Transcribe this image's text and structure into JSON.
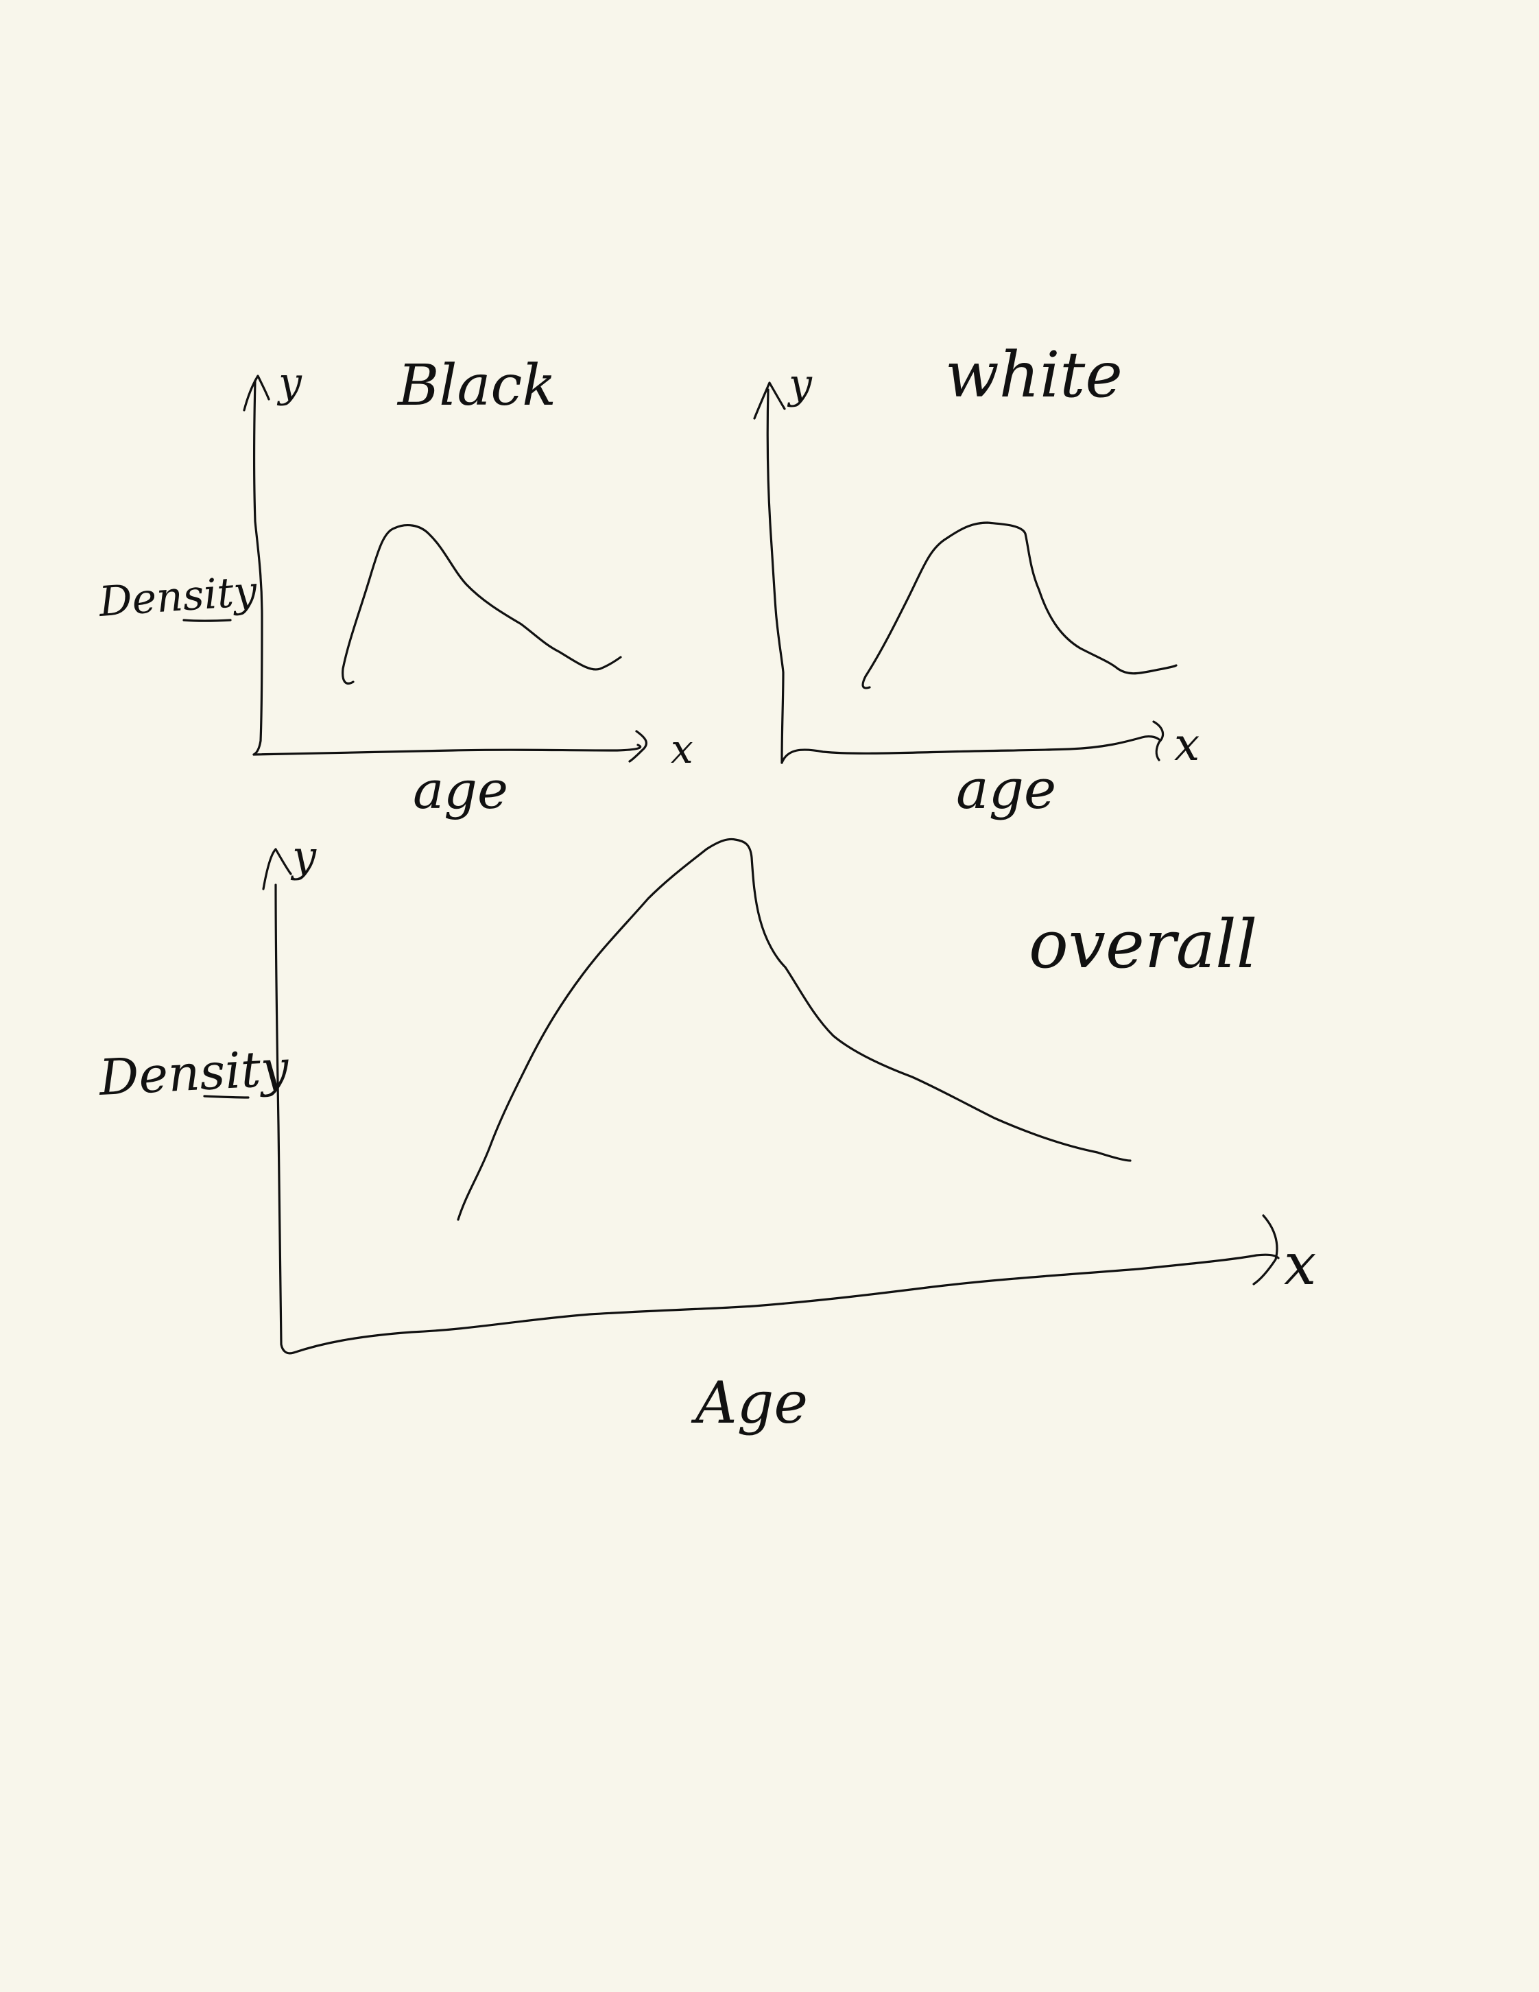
{
  "colors": {
    "ink": "#111111",
    "paper": "#f8f6eb"
  },
  "chart_data": [
    {
      "type": "line",
      "title": "Black",
      "xlabel": "age",
      "ylabel": "Density",
      "x_axis_symbol": "x",
      "y_axis_symbol": "y",
      "grid": false,
      "shape": "right-skewed single peak (hand-drawn sketch, no numeric scale)"
    },
    {
      "type": "line",
      "title": "white",
      "xlabel": "age",
      "ylabel": "",
      "x_axis_symbol": "x",
      "y_axis_symbol": "y",
      "grid": false,
      "shape": "broad single peak, slightly right-skewed (hand-drawn sketch, no numeric scale)"
    },
    {
      "type": "line",
      "title": "overall",
      "xlabel": "Age",
      "ylabel": "Density",
      "x_axis_symbol": "x",
      "y_axis_symbol": "y",
      "grid": false,
      "shape": "tall peak with long right tail (hand-drawn sketch, no numeric scale)"
    }
  ]
}
